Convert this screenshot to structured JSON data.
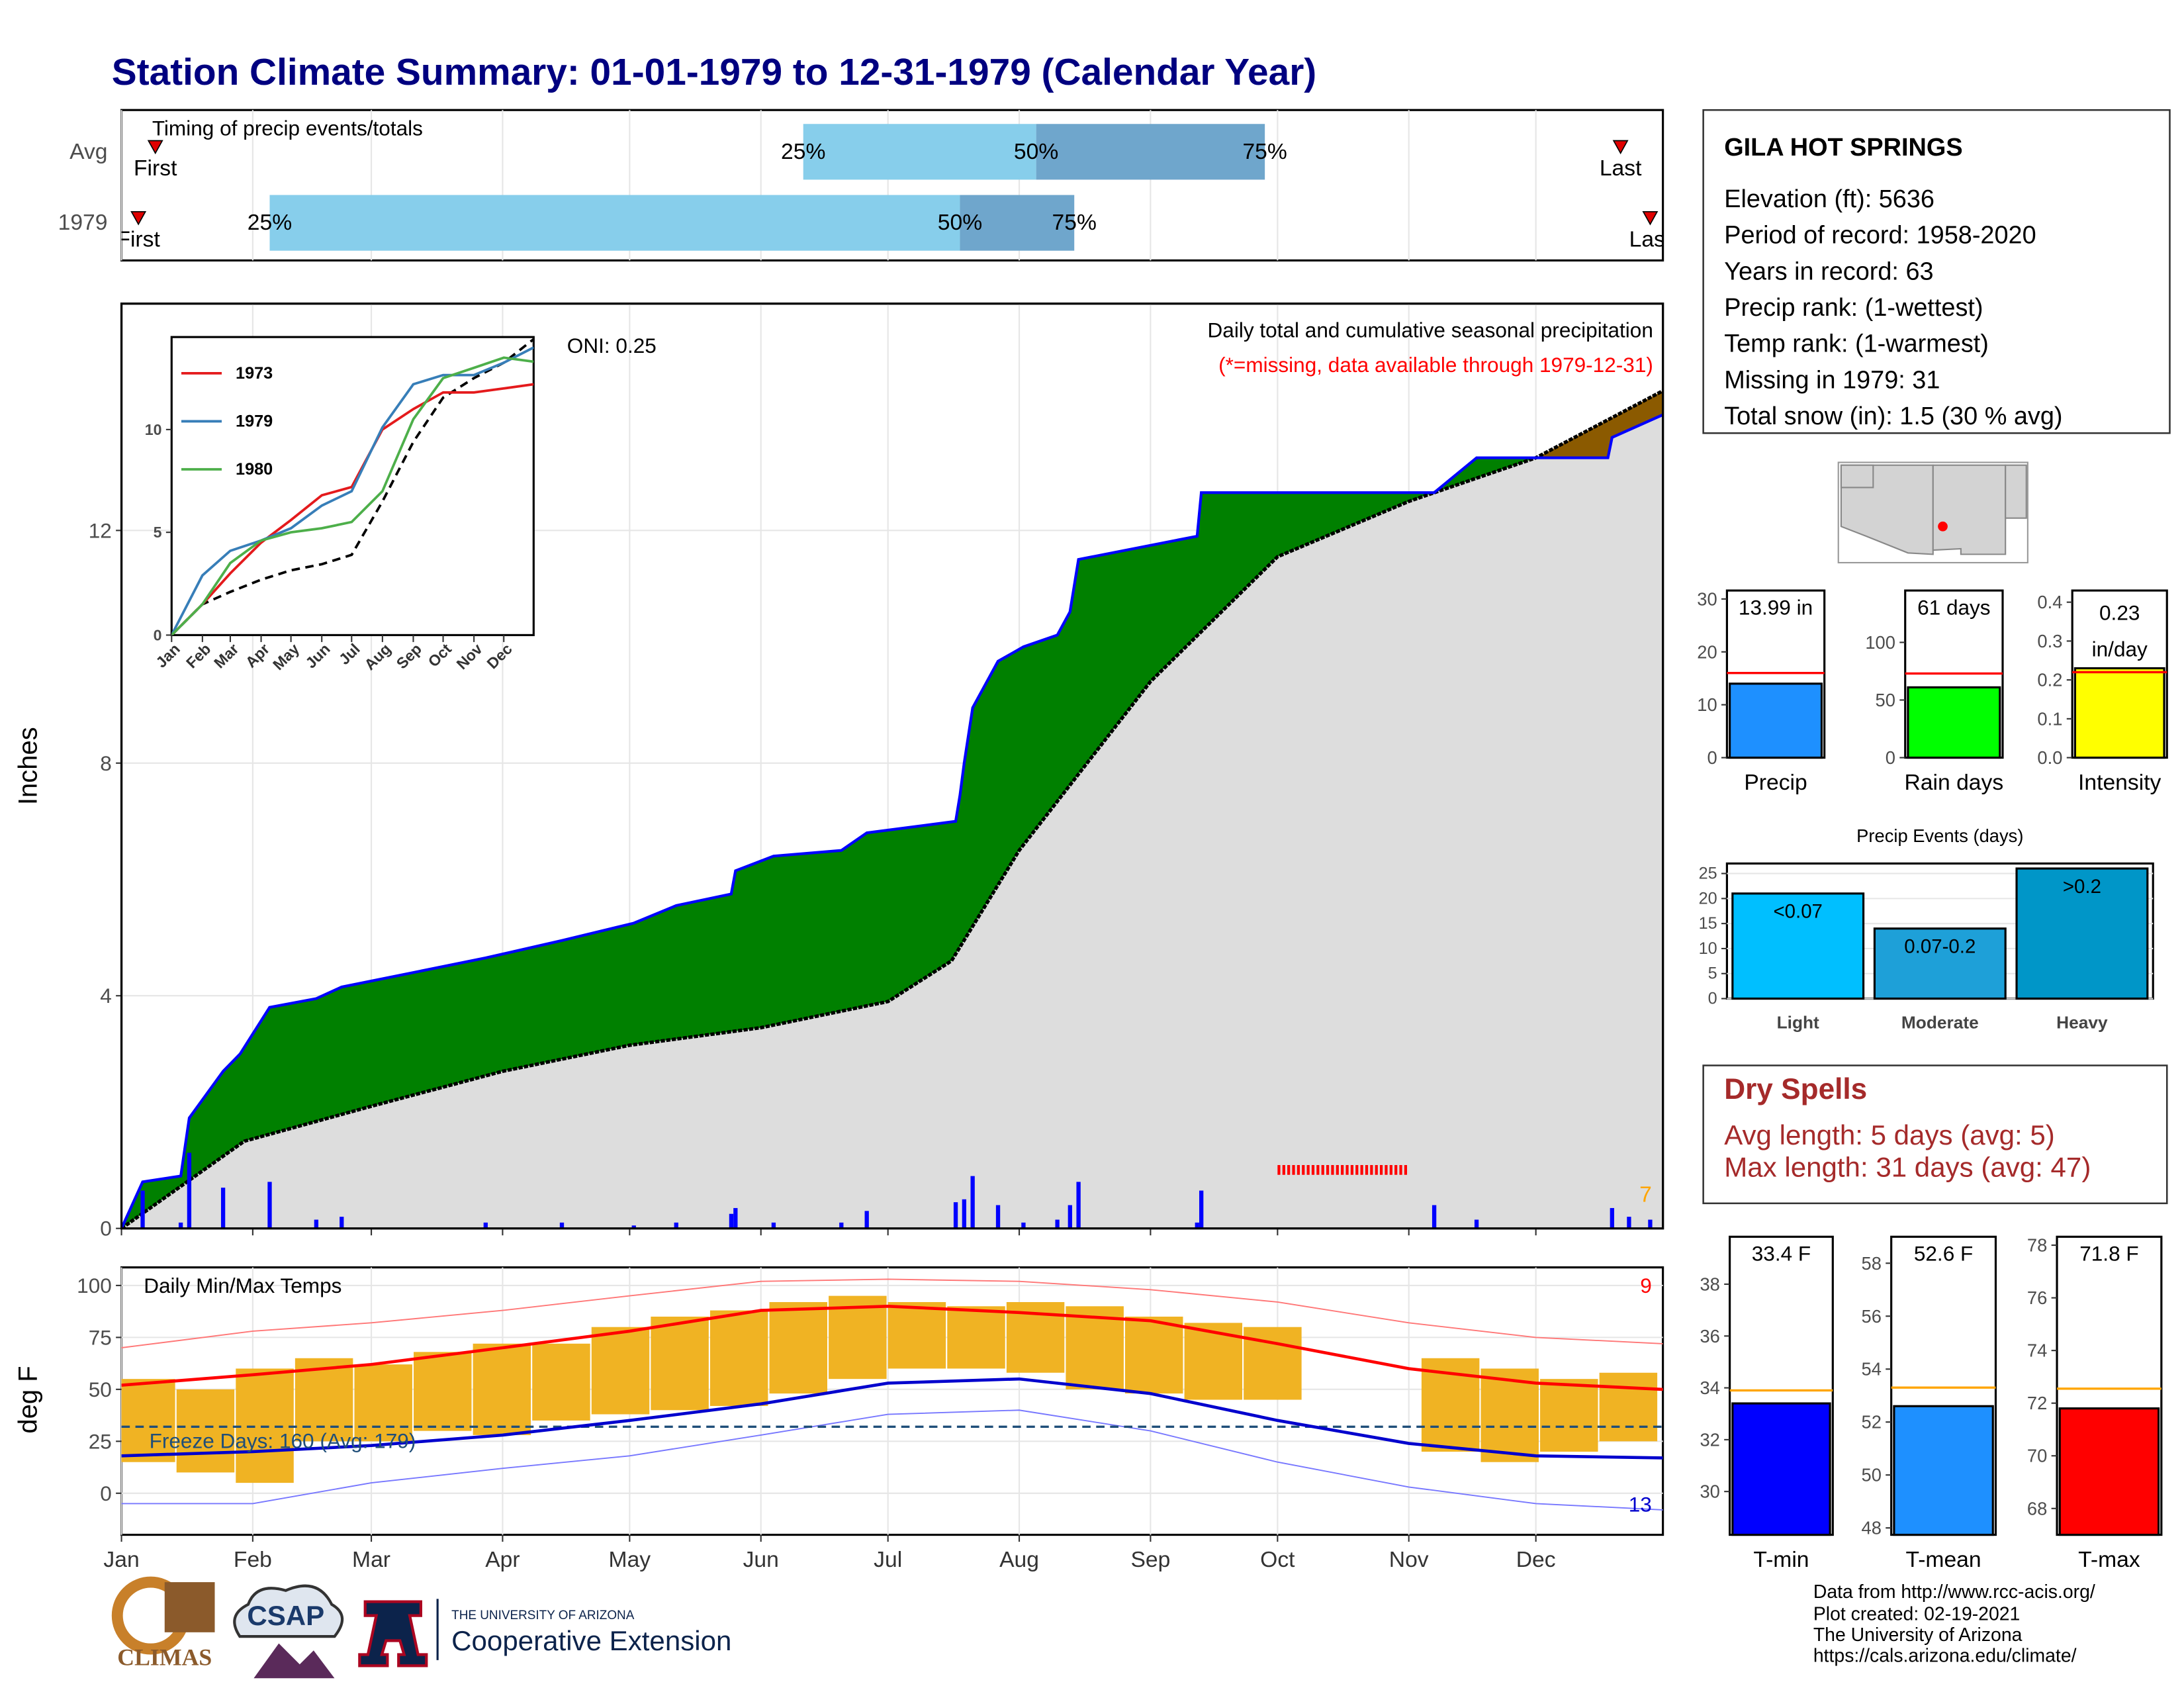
{
  "title": "Station Climate Summary: 01-01-1979 to 12-31-1979 (Calendar Year)",
  "station": {
    "name": "GILA HOT SPRINGS",
    "lines": [
      "Elevation (ft): 5636",
      "Period of record: 1958-2020",
      "Years in record: 63",
      "Precip rank:  (1-wettest)",
      "Temp rank:  (1-warmest)",
      "Missing in 1979: 31",
      "Total snow (in): 1.5 (30 % avg)"
    ]
  },
  "dry_spells": {
    "title": "Dry Spells",
    "lines": [
      "Avg length: 5 days (avg: 5)",
      "Max length: 31 days (avg: 47)"
    ]
  },
  "footer": [
    "Data from http://www.rcc-acis.org/",
    "Plot created: 02-19-2021",
    "The University of Arizona",
    "https://cals.arizona.edu/climate/"
  ],
  "logos": {
    "climas": "CLIMAS",
    "csap": "CSAP",
    "university": "THE UNIVERSITY OF ARIZONA",
    "extension": "Cooperative Extension"
  },
  "chart_data": [
    {
      "type": "timing",
      "title": "Timing of precip events/totals",
      "categories": [
        "Avg",
        "1979"
      ],
      "xlim": [
        1,
        365
      ],
      "xticks": [
        1,
        32,
        60,
        91,
        121,
        152,
        182,
        213,
        244,
        274,
        305,
        335
      ],
      "rows": [
        {
          "first": 9,
          "p25": 162,
          "p50": 217,
          "p75": 271,
          "last": 355
        },
        {
          "first": 5,
          "p25": 36,
          "p50": 199,
          "p75": 226,
          "last": 362
        }
      ],
      "labels": {
        "first": "First",
        "last": "Last",
        "p25": "25%",
        "p50": "50%",
        "p75": "75%"
      },
      "colors": [
        "#87ceeb",
        "#6fa6cc"
      ],
      "marker_color": "#e00000"
    },
    {
      "type": "area",
      "title": "Daily total and cumulative seasonal precipitation",
      "subtitle": "(*=missing, data available through 1979-12-31)",
      "annotations": [
        "ONI: 0.25",
        "7"
      ],
      "ylabel": "Inches",
      "xlim": [
        1,
        365
      ],
      "xticks": [
        1,
        32,
        60,
        91,
        121,
        152,
        182,
        213,
        244,
        274,
        305,
        335
      ],
      "ylim": [
        0,
        15.9
      ],
      "yticks": [
        0,
        4,
        8,
        12
      ],
      "grid": true,
      "observed": {
        "color": "#0000ff",
        "x": [
          1,
          6,
          15,
          17,
          25,
          29,
          36,
          47,
          53,
          87,
          105,
          122,
          132,
          145,
          146,
          155,
          171,
          177,
          198,
          199,
          200,
          202,
          208,
          214,
          222,
          225,
          227,
          255,
          256,
          311,
          321,
          352,
          353,
          365
        ],
        "values": [
          0,
          0.8,
          0.9,
          1.9,
          2.7,
          3.0,
          3.8,
          3.95,
          4.15,
          4.65,
          4.95,
          5.25,
          5.55,
          5.75,
          6.15,
          6.4,
          6.5,
          6.8,
          7.0,
          7.45,
          8.0,
          8.95,
          9.75,
          10.0,
          10.2,
          10.6,
          11.5,
          11.9,
          12.65,
          12.65,
          13.25,
          13.25,
          13.6,
          13.99
        ]
      },
      "normal": {
        "color": "#000000",
        "x": [
          1,
          30,
          60,
          91,
          121,
          152,
          182,
          197,
          213,
          244,
          274,
          305,
          335,
          365
        ],
        "values": [
          0,
          1.5,
          2.1,
          2.7,
          3.15,
          3.45,
          3.9,
          4.6,
          6.5,
          9.4,
          11.55,
          12.5,
          13.25,
          14.4
        ]
      },
      "daily": {
        "color": "#0000ff",
        "x": [
          6,
          15,
          17,
          25,
          36,
          47,
          53,
          87,
          105,
          122,
          132,
          145,
          146,
          155,
          171,
          177,
          198,
          200,
          202,
          208,
          214,
          222,
          225,
          227,
          255,
          256,
          311,
          321,
          353,
          357,
          362
        ],
        "values": [
          0.65,
          0.1,
          1.3,
          0.7,
          0.8,
          0.15,
          0.2,
          0.1,
          0.1,
          0.05,
          0.1,
          0.25,
          0.35,
          0.1,
          0.1,
          0.3,
          0.45,
          0.5,
          0.9,
          0.4,
          0.1,
          0.15,
          0.4,
          0.8,
          0.1,
          0.65,
          0.4,
          0.15,
          0.35,
          0.2,
          0.15
        ]
      },
      "fill_colors": {
        "above": "#008000",
        "below": "#8b5a00",
        "base": "#dddddd"
      },
      "missing": {
        "x": [
          274,
          305
        ],
        "color": "#ff0000"
      },
      "annotation_colors": [
        "#000000",
        "#ffa500"
      ]
    },
    {
      "type": "line",
      "xlim": [
        1,
        365
      ],
      "ylim": [
        0,
        14.5
      ],
      "yticks": [
        0,
        5,
        10
      ],
      "xticks": [
        {
          "value": 1,
          "label": "Jan"
        },
        {
          "value": 32,
          "label": "Feb"
        },
        {
          "value": 60,
          "label": "Mar"
        },
        {
          "value": 91,
          "label": "Apr"
        },
        {
          "value": 121,
          "label": "May"
        },
        {
          "value": 152,
          "label": "Jun"
        },
        {
          "value": 182,
          "label": "Jul"
        },
        {
          "value": 213,
          "label": "Aug"
        },
        {
          "value": 244,
          "label": "Sep"
        },
        {
          "value": 274,
          "label": "Oct"
        },
        {
          "value": 305,
          "label": "Nov"
        },
        {
          "value": 335,
          "label": "Dec"
        }
      ],
      "x": [
        1,
        32,
        60,
        91,
        121,
        152,
        182,
        213,
        244,
        274,
        305,
        335,
        365
      ],
      "series": [
        {
          "name": "1973",
          "color": "#e41a1c",
          "values": [
            0,
            1.5,
            3,
            4.5,
            5.6,
            6.8,
            7.2,
            10,
            11,
            11.8,
            11.8,
            12,
            12.2
          ]
        },
        {
          "name": "1979",
          "color": "#377eb8",
          "values": [
            0,
            2.9,
            4.1,
            4.6,
            5.2,
            6.3,
            7.0,
            10.1,
            12.2,
            12.65,
            12.65,
            13.25,
            13.99
          ]
        },
        {
          "name": "1980",
          "color": "#4daf4a",
          "values": [
            0,
            1.5,
            3.5,
            4.6,
            5.0,
            5.2,
            5.5,
            7,
            10.5,
            12.5,
            13,
            13.5,
            13.3
          ]
        }
      ],
      "normal": {
        "color": "#000000",
        "values": [
          0,
          1.5,
          2.1,
          2.7,
          3.15,
          3.45,
          3.9,
          6.5,
          9.4,
          11.55,
          12.5,
          13.25,
          14.4
        ]
      }
    },
    {
      "type": "range",
      "title": "Daily Min/Max Temps",
      "annotations": [
        "Freeze Days: 160 (Avg: 179)",
        "9",
        "13"
      ],
      "annotation_colors": [
        "#1f4e79",
        "#ff0000",
        "#0000cd"
      ],
      "ylabel": "deg F",
      "xlim": [
        1,
        365
      ],
      "ylim": [
        -20,
        108.7
      ],
      "yticks": [
        0,
        25,
        50,
        75,
        100
      ],
      "grid": true,
      "freeze": 32,
      "xticks": [
        {
          "value": 1,
          "label": "Jan"
        },
        {
          "value": 32,
          "label": "Feb"
        },
        {
          "value": 60,
          "label": "Mar"
        },
        {
          "value": 91,
          "label": "Apr"
        },
        {
          "value": 121,
          "label": "May"
        },
        {
          "value": 152,
          "label": "Jun"
        },
        {
          "value": 182,
          "label": "Jul"
        },
        {
          "value": 213,
          "label": "Aug"
        },
        {
          "value": 244,
          "label": "Sep"
        },
        {
          "value": 274,
          "label": "Oct"
        },
        {
          "value": 305,
          "label": "Nov"
        },
        {
          "value": 335,
          "label": "Dec"
        }
      ],
      "x": [
        7,
        21,
        35,
        49,
        63,
        77,
        91,
        105,
        119,
        133,
        147,
        161,
        175,
        189,
        203,
        217,
        231,
        245,
        259,
        273,
        287,
        301,
        315,
        329,
        343,
        357
      ],
      "bin_days": 14,
      "min": [
        15,
        10,
        5,
        25,
        25,
        30,
        28,
        35,
        38,
        40,
        42,
        48,
        55,
        60,
        60,
        58,
        50,
        48,
        45,
        45,
        null,
        null,
        20,
        15,
        20,
        25
      ],
      "max": [
        55,
        50,
        60,
        65,
        62,
        68,
        72,
        72,
        80,
        85,
        88,
        92,
        95,
        92,
        90,
        92,
        90,
        85,
        82,
        80,
        null,
        null,
        65,
        60,
        55,
        58
      ],
      "normal_x": [
        1,
        32,
        60,
        91,
        121,
        152,
        182,
        213,
        244,
        274,
        305,
        335,
        365
      ],
      "normal_max": [
        52,
        57,
        62,
        70,
        78,
        88,
        90,
        87,
        83,
        72,
        60,
        53,
        50
      ],
      "normal_min": [
        18,
        20,
        23,
        28,
        35,
        43,
        53,
        55,
        48,
        35,
        24,
        18,
        17
      ],
      "record_max": [
        70,
        78,
        82,
        88,
        95,
        102,
        103,
        102,
        98,
        92,
        82,
        75,
        72
      ],
      "record_min": [
        -5,
        -5,
        5,
        12,
        18,
        28,
        38,
        40,
        30,
        15,
        3,
        -5,
        -8
      ],
      "colors": {
        "observed": "#f0b323",
        "normal_max": "#ff0000",
        "normal_min": "#0000cd",
        "record_max": "#ff7777",
        "record_min": "#7777ff",
        "freeze": "#1f4e79"
      }
    },
    {
      "type": "summary_bar",
      "categories": [
        "Precip"
      ],
      "values": [
        13.99
      ],
      "value_labels": [
        [
          "13.99 in"
        ]
      ],
      "avg": 16,
      "avg_color": "#ff0000",
      "color": "#1e90ff",
      "ylim": [
        0,
        31.6
      ],
      "yticks": [
        0,
        10,
        20,
        30
      ]
    },
    {
      "type": "summary_bar",
      "categories": [
        "Rain days"
      ],
      "values": [
        61
      ],
      "value_labels": [
        [
          "61 days"
        ]
      ],
      "avg": 73,
      "avg_color": "#ff0000",
      "color": "#00ff00",
      "ylim": [
        0,
        145
      ],
      "yticks": [
        0,
        50,
        100
      ]
    },
    {
      "type": "summary_bar",
      "categories": [
        "Intensity"
      ],
      "values": [
        0.23
      ],
      "value_labels": [
        [
          "0.23",
          "in/day"
        ]
      ],
      "avg": 0.22,
      "avg_color": "#ff0000",
      "color": "#ffff00",
      "ylim": [
        0,
        0.43
      ],
      "yticks": [
        {
          "value": 0,
          "label": "0.0"
        },
        0.1,
        0.2,
        0.3,
        0.4
      ]
    },
    {
      "type": "bar",
      "title": "Precip Events (days)",
      "categories": [
        "Light",
        "Moderate",
        "Heavy"
      ],
      "values": [
        21,
        14,
        26
      ],
      "thresholds": [
        "<0.07",
        "0.07-0.2",
        ">0.2"
      ],
      "colors": [
        "#00bfff",
        "#1ea0d8",
        "#0096c8"
      ],
      "ylim": [
        0,
        27
      ],
      "yticks": [
        0,
        5,
        10,
        15,
        20,
        25
      ],
      "grid": true
    },
    {
      "type": "summary_bar",
      "categories": [
        "T-min"
      ],
      "values": [
        33.4
      ],
      "value_labels": [
        [
          "33.4 F"
        ]
      ],
      "avg": 33.9,
      "avg_color": "#ffa500",
      "color": "#0000ff",
      "ylim": [
        28.33,
        39.83
      ],
      "yticks": [
        30,
        32,
        34,
        36,
        38
      ]
    },
    {
      "type": "summary_bar",
      "categories": [
        "T-mean"
      ],
      "values": [
        52.6
      ],
      "value_labels": [
        [
          "52.6 F"
        ]
      ],
      "avg": 53.3,
      "avg_color": "#ffa500",
      "color": "#1e90ff",
      "ylim": [
        47.74,
        59
      ],
      "yticks": [
        48,
        50,
        52,
        54,
        56,
        58
      ]
    },
    {
      "type": "summary_bar",
      "categories": [
        "T-max"
      ],
      "values": [
        71.8
      ],
      "value_labels": [
        [
          "71.8 F"
        ]
      ],
      "avg": 72.55,
      "avg_color": "#ffa500",
      "color": "#ff0000",
      "ylim": [
        67,
        78.32
      ],
      "yticks": [
        68,
        70,
        72,
        74,
        76,
        78
      ]
    }
  ]
}
